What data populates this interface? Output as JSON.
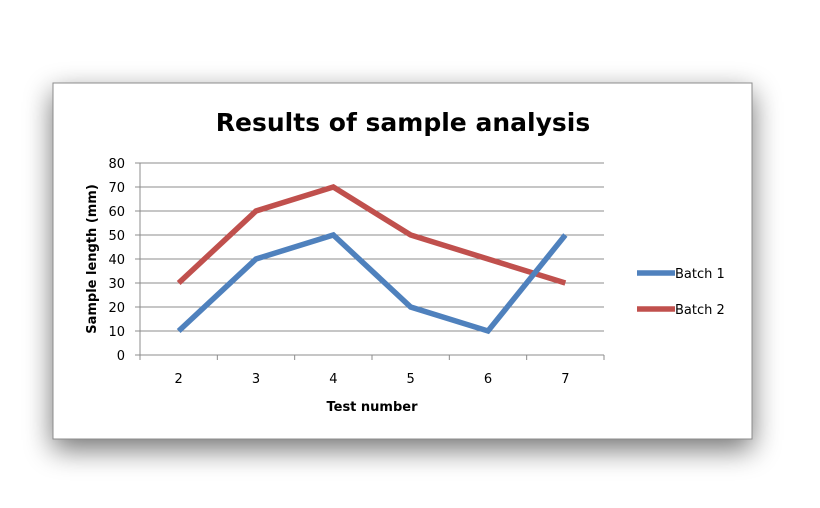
{
  "chart_data": {
    "type": "line",
    "title": "Results of sample analysis",
    "xlabel": "Test number",
    "ylabel": "Sample length (mm)",
    "categories": [
      "2",
      "3",
      "4",
      "5",
      "6",
      "7"
    ],
    "ylim": [
      0,
      80
    ],
    "yticks": [
      "0",
      "10",
      "20",
      "30",
      "40",
      "50",
      "60",
      "70",
      "80"
    ],
    "grid": true,
    "legend_position": "right",
    "series": [
      {
        "name": "Batch 1",
        "values": [
          10,
          40,
          50,
          20,
          10,
          50
        ],
        "color": "#4F81BD"
      },
      {
        "name": "Batch 2",
        "values": [
          30,
          60,
          70,
          50,
          40,
          30
        ],
        "color": "#C0504D"
      }
    ]
  }
}
